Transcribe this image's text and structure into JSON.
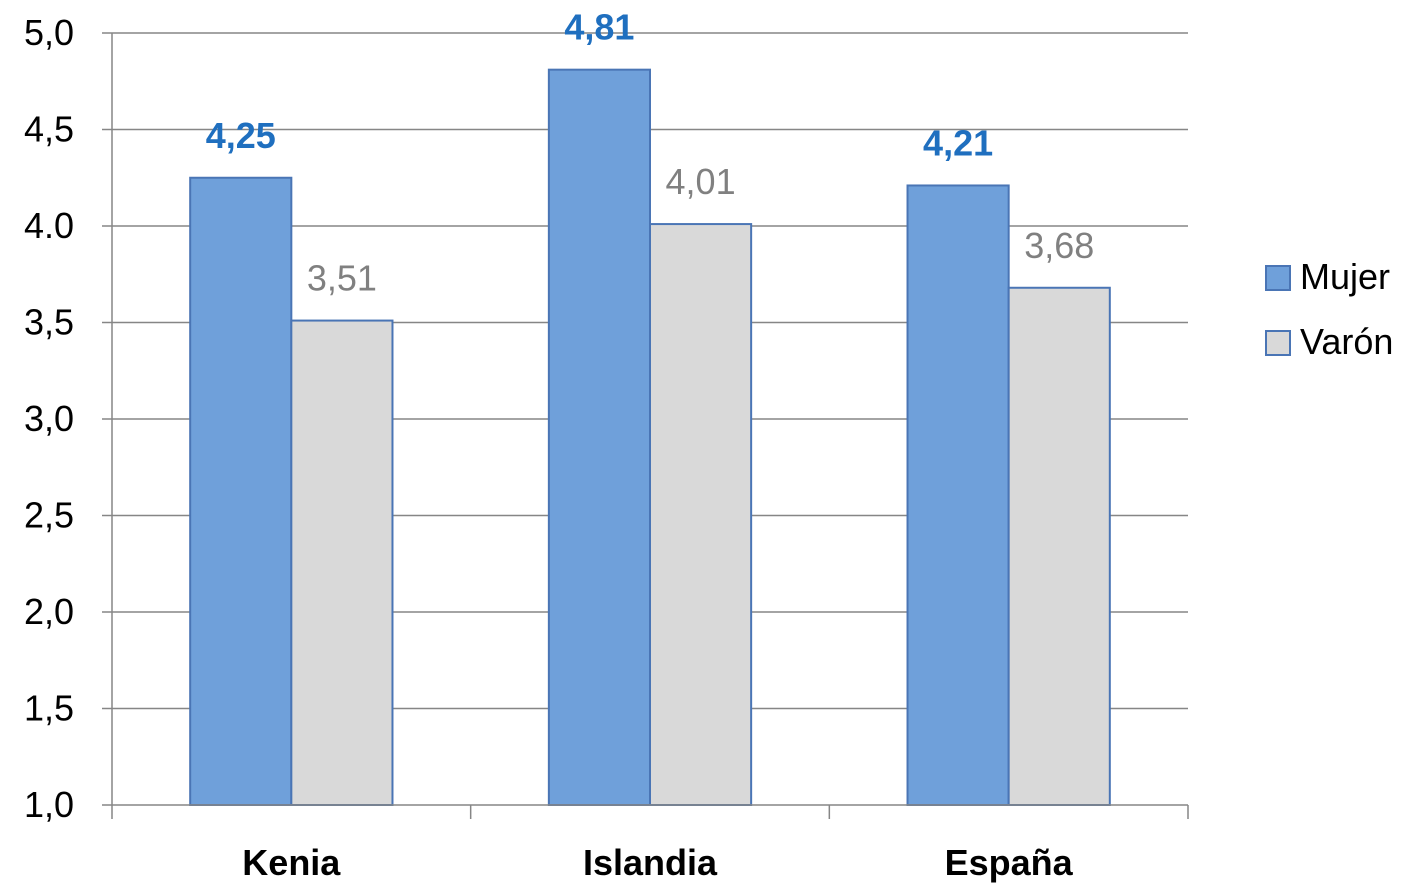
{
  "chart_data": {
    "type": "bar",
    "title": "",
    "xlabel": "",
    "ylabel": "",
    "categories": [
      "Kenia",
      "Islandia",
      "España"
    ],
    "series": [
      {
        "name": "Mujer",
        "values": [
          4.25,
          4.81,
          4.21
        ],
        "labels": [
          "4,25",
          "4,81",
          "4,21"
        ],
        "color": "#6fa0da",
        "stroke": "#4a75b5",
        "label_color": "#1f6fbf",
        "label_bold": true
      },
      {
        "name": "Varón",
        "values": [
          3.51,
          4.01,
          3.68
        ],
        "labels": [
          "3,51",
          "4,01",
          "3,68"
        ],
        "color": "#d9d9d9",
        "stroke": "#4a75b5",
        "label_color": "#808080",
        "label_bold": false
      }
    ],
    "ylim": [
      1.0,
      5.0
    ],
    "yticks": [
      1.0,
      1.5,
      2.0,
      2.5,
      3.0,
      3.5,
      4.0,
      4.5,
      5.0
    ],
    "ytick_labels": [
      "1,0",
      "1,5",
      "2,0",
      "2,5",
      "3,0",
      "3,5",
      "4.0",
      "4,5",
      "5,0"
    ],
    "grid": true,
    "legend_position": "right"
  }
}
